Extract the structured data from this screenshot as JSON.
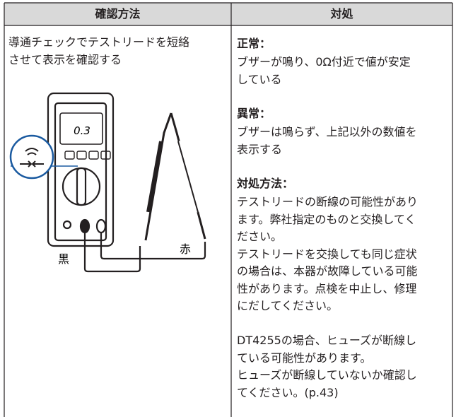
{
  "table": {
    "header": [
      "確認方法",
      "対処"
    ],
    "rows": [
      {
        "check": {
          "lines": [
            "導通チェックでテストリードを短絡",
            "させて表示を確認する"
          ],
          "illustration": {
            "display": "0.3",
            "black_label": "黒",
            "red_label": "赤"
          }
        },
        "action": {
          "sections": [
            {
              "heading": "正常：",
              "paragraphs": [
                [
                  "ブザーが鳴り、0Ω付近で値が安定",
                  "している"
                ]
              ]
            },
            {
              "heading": "異常：",
              "paragraphs": [
                [
                  "ブザーは鳴らず、上記以外の数値を",
                  "表示する"
                ]
              ]
            },
            {
              "heading": "対処方法：",
              "paragraphs": [
                [
                  "テストリードの断線の可能性があり",
                  "ます。弊社指定のものと交換してく",
                  "ださい。",
                  "テストリードを交換しても同じ症状",
                  "の場合は、本器が故障している可能",
                  "性があります。点検を中止し、修理",
                  "にだしてください。"
                ],
                [
                  "DT4255の場合、ヒューズが断線し",
                  "ている可能性があります。",
                  "ヒューズが断線していないか確認し",
                  "てください。(p.43)"
                ]
              ]
            }
          ]
        }
      }
    ]
  }
}
